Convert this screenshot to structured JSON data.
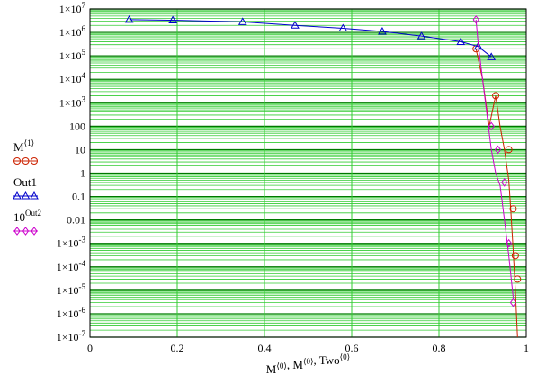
{
  "chart_data": {
    "type": "line",
    "title": "",
    "xlabel_parts": [
      {
        "base": "M",
        "sup": "⟨0⟩"
      },
      {
        "base": ", M",
        "sup": "⟨0⟩"
      },
      {
        "base": ", Two",
        "sup": "⟨0⟩"
      }
    ],
    "xlim": [
      0,
      1
    ],
    "ylim_exp": [
      -7,
      7
    ],
    "yscale": "log",
    "grid": true,
    "legend_position": "left",
    "x_ticks": [
      "0",
      "0.2",
      "0.4",
      "0.6",
      "0.8",
      "1"
    ],
    "y_ticks": [
      {
        "exp": -7,
        "base": "1×10",
        "sup": "-7"
      },
      {
        "exp": -6,
        "base": "1×10",
        "sup": "-6"
      },
      {
        "exp": -5,
        "base": "1×10",
        "sup": "-5"
      },
      {
        "exp": -4,
        "base": "1×10",
        "sup": "-4"
      },
      {
        "exp": -3,
        "base": "1×10",
        "sup": "-3"
      },
      {
        "exp": -2,
        "base": "0.01",
        "sup": ""
      },
      {
        "exp": -1,
        "base": "0.1",
        "sup": ""
      },
      {
        "exp": 0,
        "base": "1",
        "sup": ""
      },
      {
        "exp": 1,
        "base": "10",
        "sup": ""
      },
      {
        "exp": 2,
        "base": "100",
        "sup": ""
      },
      {
        "exp": 3,
        "base": "1×10",
        "sup": "3"
      },
      {
        "exp": 4,
        "base": "1×10",
        "sup": "4"
      },
      {
        "exp": 5,
        "base": "1×10",
        "sup": "5"
      },
      {
        "exp": 6,
        "base": "1×10",
        "sup": "6"
      },
      {
        "exp": 7,
        "base": "1×10",
        "sup": "7"
      }
    ],
    "series": [
      {
        "name": "M",
        "name_sup": "⟨1⟩",
        "color": "#cc2200",
        "marker": "circle",
        "x": [
          0.885,
          0.9,
          0.915,
          0.93,
          0.94,
          0.95,
          0.96,
          0.965,
          0.97,
          0.975,
          0.98
        ],
        "y": [
          200000,
          10000,
          100,
          2000,
          100,
          10,
          0.5,
          0.02,
          0.0005,
          1e-05,
          1e-07
        ],
        "markers_x": [
          0.885,
          0.93,
          0.96,
          0.97,
          0.975,
          0.98
        ],
        "markers_y": [
          200000,
          2000,
          10,
          0.03,
          0.0003,
          3e-05
        ]
      },
      {
        "name": "Out1",
        "name_sup": "",
        "color": "#0000cc",
        "marker": "triangle",
        "x": [
          0.09,
          0.2,
          0.35,
          0.47,
          0.58,
          0.67,
          0.76,
          0.85,
          0.89,
          0.92
        ],
        "y": [
          3500000,
          3300000,
          2800000,
          2000000,
          1500000,
          1100000,
          700000,
          400000,
          250000,
          90000
        ],
        "markers_x": [
          0.09,
          0.19,
          0.35,
          0.47,
          0.58,
          0.67,
          0.76,
          0.85,
          0.89,
          0.92
        ],
        "markers_y": [
          3500000,
          3300000,
          2800000,
          2000000,
          1500000,
          1100000,
          700000,
          400000,
          250000,
          90000
        ]
      },
      {
        "name": "10",
        "name_sup": "Out2",
        "color": "#cc00cc",
        "marker": "diamond",
        "x": [
          0.885,
          0.89,
          0.9,
          0.91,
          0.92,
          0.93,
          0.94,
          0.95,
          0.96,
          0.97
        ],
        "y": [
          3500000,
          300000,
          10000,
          300,
          10,
          1,
          0.3,
          0.01,
          0.0003,
          5e-06
        ],
        "markers_x": [
          0.885,
          0.92,
          0.935,
          0.95,
          0.96,
          0.97
        ],
        "markers_y": [
          3500000,
          100,
          10,
          0.4,
          0.001,
          3e-06
        ]
      }
    ]
  }
}
